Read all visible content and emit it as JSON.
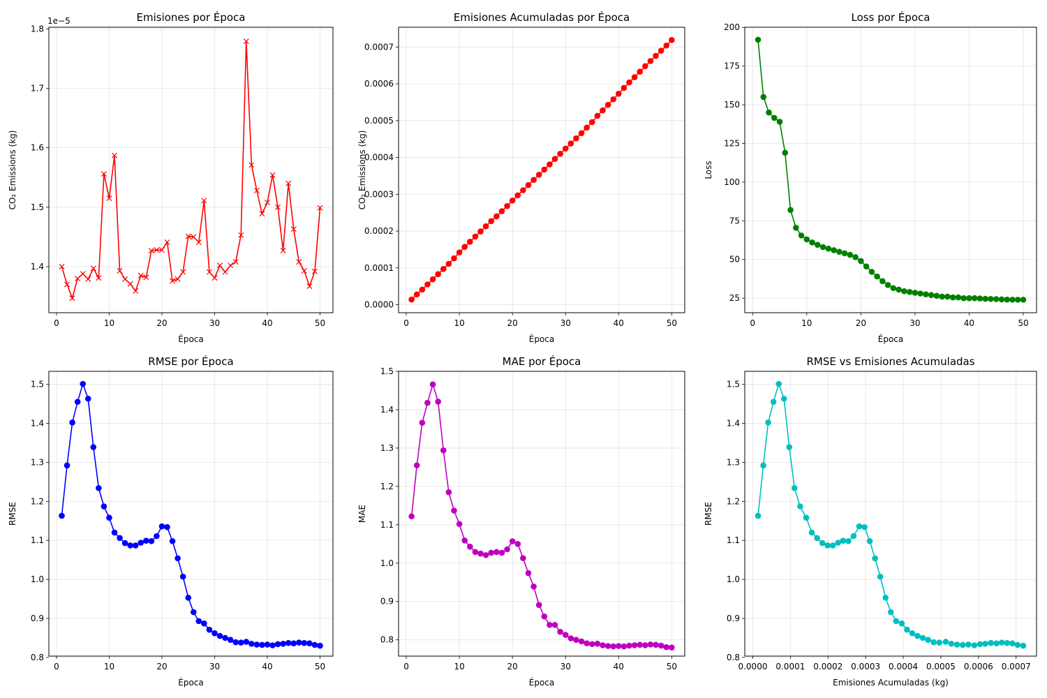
{
  "chart_data": [
    {
      "type": "line",
      "title": "Emisiones por Época",
      "xlabel": "Época",
      "ylabel": "CO₂ Emissions (kg)",
      "offset_label": "1e−5",
      "xlim": [
        -1.45,
        52.45
      ],
      "ylim": [
        1.3225,
        1.8027
      ],
      "xticks": [
        0,
        10,
        20,
        30,
        40,
        50
      ],
      "yticks": [
        1.4,
        1.5,
        1.6,
        1.7,
        1.8
      ],
      "ytick_labels": [
        "1.4",
        "1.5",
        "1.6",
        "1.7",
        "1.8"
      ],
      "xtick_labels": [
        "0",
        "10",
        "20",
        "30",
        "40",
        "50"
      ],
      "grid": true,
      "series": [
        {
          "color": "#ff0000",
          "marker": "x",
          "x": [
            1,
            2,
            3,
            4,
            5,
            6,
            7,
            8,
            9,
            10,
            11,
            12,
            13,
            14,
            15,
            16,
            17,
            18,
            19,
            20,
            21,
            22,
            23,
            24,
            25,
            26,
            27,
            28,
            29,
            30,
            31,
            32,
            33,
            34,
            35,
            36,
            37,
            38,
            39,
            40,
            41,
            42,
            43,
            44,
            45,
            46,
            47,
            48,
            49,
            50
          ],
          "y": [
            1.4,
            1.37,
            1.347,
            1.38,
            1.388,
            1.379,
            1.397,
            1.381,
            1.556,
            1.515,
            1.587,
            1.393,
            1.379,
            1.371,
            1.359,
            1.385,
            1.382,
            1.427,
            1.428,
            1.428,
            1.441,
            1.376,
            1.379,
            1.391,
            1.451,
            1.45,
            1.441,
            1.511,
            1.391,
            1.381,
            1.402,
            1.391,
            1.402,
            1.408,
            1.453,
            1.779,
            1.571,
            1.528,
            1.489,
            1.508,
            1.554,
            1.5,
            1.427,
            1.54,
            1.463,
            1.408,
            1.393,
            1.367,
            1.392,
            1.499
          ]
        }
      ]
    },
    {
      "type": "line",
      "title": "Emisiones Acumuladas por Época",
      "xlabel": "Época",
      "ylabel": "CO₂ Emissions (kg)",
      "xlim": [
        -1.45,
        52.45
      ],
      "ylim": [
        -2.18e-05,
        0.0007538
      ],
      "xticks": [
        0,
        10,
        20,
        30,
        40,
        50
      ],
      "xtick_labels": [
        "0",
        "10",
        "20",
        "30",
        "40",
        "50"
      ],
      "yticks": [
        0,
        0.0001,
        0.0002,
        0.0003,
        0.0004,
        0.0005,
        0.0006,
        0.0007
      ],
      "ytick_labels": [
        "0.0000",
        "0.0001",
        "0.0002",
        "0.0003",
        "0.0004",
        "0.0005",
        "0.0006",
        "0.0007"
      ],
      "grid": true,
      "series": [
        {
          "color": "#ff0000",
          "marker": "o",
          "x": [
            1,
            2,
            3,
            4,
            5,
            6,
            7,
            8,
            9,
            10,
            11,
            12,
            13,
            14,
            15,
            16,
            17,
            18,
            19,
            20,
            21,
            22,
            23,
            24,
            25,
            26,
            27,
            28,
            29,
            30,
            31,
            32,
            33,
            34,
            35,
            36,
            37,
            38,
            39,
            40,
            41,
            42,
            43,
            44,
            45,
            46,
            47,
            48,
            49,
            50
          ],
          "y": [
            1.4e-05,
            2.8e-05,
            4.1e-05,
            5.5e-05,
            6.9e-05,
            8.3e-05,
            9.7e-05,
            0.000111,
            0.000126,
            0.000142,
            0.000157,
            0.000171,
            0.000185,
            0.000199,
            0.000213,
            0.000227,
            0.00024,
            0.000254,
            0.000268,
            0.000283,
            0.000297,
            0.000311,
            0.000325,
            0.000339,
            0.000353,
            0.000367,
            0.000381,
            0.000396,
            0.00041,
            0.000424,
            0.000438,
            0.000452,
            0.000466,
            0.000481,
            0.000496,
            0.000513,
            0.000528,
            0.000543,
            0.000558,
            0.000573,
            0.000589,
            0.000604,
            0.000618,
            0.000633,
            0.000648,
            0.000662,
            0.000676,
            0.00069,
            0.000704,
            0.000719
          ]
        }
      ]
    },
    {
      "type": "line",
      "title": "Loss por Época",
      "xlabel": "Época",
      "ylabel": "Loss",
      "xlim": [
        -1.45,
        52.45
      ],
      "ylim": [
        15.6,
        200.1
      ],
      "xticks": [
        0,
        10,
        20,
        30,
        40,
        50
      ],
      "xtick_labels": [
        "0",
        "10",
        "20",
        "30",
        "40",
        "50"
      ],
      "yticks": [
        25,
        50,
        75,
        100,
        125,
        150,
        175,
        200
      ],
      "ytick_labels": [
        "25",
        "50",
        "75",
        "100",
        "125",
        "150",
        "175",
        "200"
      ],
      "grid": true,
      "series": [
        {
          "color": "#008000",
          "marker": "o",
          "x": [
            1,
            2,
            3,
            4,
            5,
            6,
            7,
            8,
            9,
            10,
            11,
            12,
            13,
            14,
            15,
            16,
            17,
            18,
            19,
            20,
            21,
            22,
            23,
            24,
            25,
            26,
            27,
            28,
            29,
            30,
            31,
            32,
            33,
            34,
            35,
            36,
            37,
            38,
            39,
            40,
            41,
            42,
            43,
            44,
            45,
            46,
            47,
            48,
            49,
            50
          ],
          "y": [
            192,
            155,
            145,
            141.5,
            139,
            119,
            82,
            70.5,
            65.5,
            63,
            61,
            59.5,
            58,
            57,
            56,
            55,
            54,
            53,
            51.5,
            49,
            45.5,
            42,
            39,
            36,
            33.5,
            31.5,
            30.5,
            29.5,
            29,
            28.5,
            28,
            27.5,
            27,
            26.5,
            26,
            26,
            25.5,
            25.5,
            25,
            25,
            25,
            24.8,
            24.6,
            24.5,
            24.4,
            24.2,
            24.1,
            24,
            24,
            24
          ]
        }
      ]
    },
    {
      "type": "line",
      "title": "RMSE por Época",
      "xlabel": "Época",
      "ylabel": "RMSE",
      "xlim": [
        -1.45,
        52.45
      ],
      "ylim": [
        0.8033,
        1.5332
      ],
      "xticks": [
        0,
        10,
        20,
        30,
        40,
        50
      ],
      "xtick_labels": [
        "0",
        "10",
        "20",
        "30",
        "40",
        "50"
      ],
      "yticks": [
        0.8,
        0.9,
        1.0,
        1.1,
        1.2,
        1.3,
        1.4,
        1.5
      ],
      "ytick_labels": [
        "0.8",
        "0.9",
        "1.0",
        "1.1",
        "1.2",
        "1.3",
        "1.4",
        "1.5"
      ],
      "grid": true,
      "series": [
        {
          "color": "#0000ff",
          "marker": "o",
          "x": [
            1,
            2,
            3,
            4,
            5,
            6,
            7,
            8,
            9,
            10,
            11,
            12,
            13,
            14,
            15,
            16,
            17,
            18,
            19,
            20,
            21,
            22,
            23,
            24,
            25,
            26,
            27,
            28,
            29,
            30,
            31,
            32,
            33,
            34,
            35,
            36,
            37,
            38,
            39,
            40,
            41,
            42,
            43,
            44,
            45,
            46,
            47,
            48,
            49,
            50
          ],
          "y": [
            1.163,
            1.292,
            1.402,
            1.455,
            1.501,
            1.463,
            1.339,
            1.234,
            1.187,
            1.158,
            1.12,
            1.106,
            1.093,
            1.087,
            1.087,
            1.094,
            1.099,
            1.098,
            1.111,
            1.136,
            1.134,
            1.098,
            1.054,
            1.007,
            0.953,
            0.916,
            0.893,
            0.887,
            0.871,
            0.862,
            0.855,
            0.85,
            0.845,
            0.839,
            0.838,
            0.84,
            0.835,
            0.833,
            0.832,
            0.833,
            0.831,
            0.834,
            0.835,
            0.837,
            0.836,
            0.838,
            0.837,
            0.836,
            0.832,
            0.83
          ]
        }
      ]
    },
    {
      "type": "line",
      "title": "MAE por Época",
      "xlabel": "Época",
      "ylabel": "MAE",
      "xlim": [
        -1.45,
        52.45
      ],
      "ylim": [
        0.7576,
        1.5
      ],
      "xticks": [
        0,
        10,
        20,
        30,
        40,
        50
      ],
      "xtick_labels": [
        "0",
        "10",
        "20",
        "30",
        "40",
        "50"
      ],
      "yticks": [
        0.8,
        0.9,
        1.0,
        1.1,
        1.2,
        1.3,
        1.4,
        1.5
      ],
      "ytick_labels": [
        "0.8",
        "0.9",
        "1.0",
        "1.1",
        "1.2",
        "1.3",
        "1.4",
        "1.5"
      ],
      "grid": true,
      "series": [
        {
          "color": "#bf00bf",
          "marker": "o",
          "x": [
            1,
            2,
            3,
            4,
            5,
            6,
            7,
            8,
            9,
            10,
            11,
            12,
            13,
            14,
            15,
            16,
            17,
            18,
            19,
            20,
            21,
            22,
            23,
            24,
            25,
            26,
            27,
            28,
            29,
            30,
            31,
            32,
            33,
            34,
            35,
            36,
            37,
            38,
            39,
            40,
            41,
            42,
            43,
            44,
            45,
            46,
            47,
            48,
            49,
            50
          ],
          "y": [
            1.122,
            1.255,
            1.366,
            1.418,
            1.466,
            1.421,
            1.294,
            1.185,
            1.137,
            1.102,
            1.059,
            1.043,
            1.029,
            1.025,
            1.021,
            1.027,
            1.029,
            1.027,
            1.036,
            1.057,
            1.05,
            1.013,
            0.974,
            0.939,
            0.891,
            0.861,
            0.839,
            0.839,
            0.821,
            0.813,
            0.804,
            0.8,
            0.796,
            0.791,
            0.789,
            0.79,
            0.786,
            0.784,
            0.783,
            0.784,
            0.783,
            0.785,
            0.786,
            0.787,
            0.786,
            0.788,
            0.787,
            0.785,
            0.781,
            0.78
          ]
        }
      ]
    },
    {
      "type": "line",
      "title": "RMSE vs Emisiones Acumuladas",
      "xlabel": "Emisiones Acumuladas (kg)",
      "ylabel": "RMSE",
      "xlim": [
        -2.13e-05,
        0.0007543
      ],
      "ylim": [
        0.8033,
        1.5332
      ],
      "xticks": [
        0,
        0.0001,
        0.0002,
        0.0003,
        0.0004,
        0.0005,
        0.0006,
        0.0007
      ],
      "xtick_labels": [
        "0.0000",
        "0.0001",
        "0.0002",
        "0.0003",
        "0.0004",
        "0.0005",
        "0.0006",
        "0.0007"
      ],
      "yticks": [
        0.8,
        0.9,
        1.0,
        1.1,
        1.2,
        1.3,
        1.4,
        1.5
      ],
      "ytick_labels": [
        "0.8",
        "0.9",
        "1.0",
        "1.1",
        "1.2",
        "1.3",
        "1.4",
        "1.5"
      ],
      "grid": true,
      "series": [
        {
          "color": "#00bfbf",
          "marker": "o",
          "x": [
            1.4e-05,
            2.8e-05,
            4.1e-05,
            5.5e-05,
            6.9e-05,
            8.3e-05,
            9.7e-05,
            0.000111,
            0.000126,
            0.000142,
            0.000157,
            0.000171,
            0.000185,
            0.000199,
            0.000213,
            0.000227,
            0.00024,
            0.000254,
            0.000268,
            0.000283,
            0.000297,
            0.000311,
            0.000325,
            0.000339,
            0.000353,
            0.000367,
            0.000381,
            0.000396,
            0.00041,
            0.000424,
            0.000438,
            0.000452,
            0.000466,
            0.000481,
            0.000496,
            0.000513,
            0.000528,
            0.000543,
            0.000558,
            0.000573,
            0.000589,
            0.000604,
            0.000618,
            0.000633,
            0.000648,
            0.000662,
            0.000676,
            0.00069,
            0.000704,
            0.000719
          ],
          "y": [
            1.163,
            1.292,
            1.402,
            1.455,
            1.501,
            1.463,
            1.339,
            1.234,
            1.187,
            1.158,
            1.12,
            1.106,
            1.093,
            1.087,
            1.087,
            1.094,
            1.099,
            1.098,
            1.111,
            1.136,
            1.134,
            1.098,
            1.054,
            1.007,
            0.953,
            0.916,
            0.893,
            0.887,
            0.871,
            0.862,
            0.855,
            0.85,
            0.845,
            0.839,
            0.838,
            0.84,
            0.835,
            0.833,
            0.832,
            0.833,
            0.831,
            0.834,
            0.835,
            0.837,
            0.836,
            0.838,
            0.837,
            0.836,
            0.832,
            0.83
          ]
        }
      ]
    }
  ]
}
